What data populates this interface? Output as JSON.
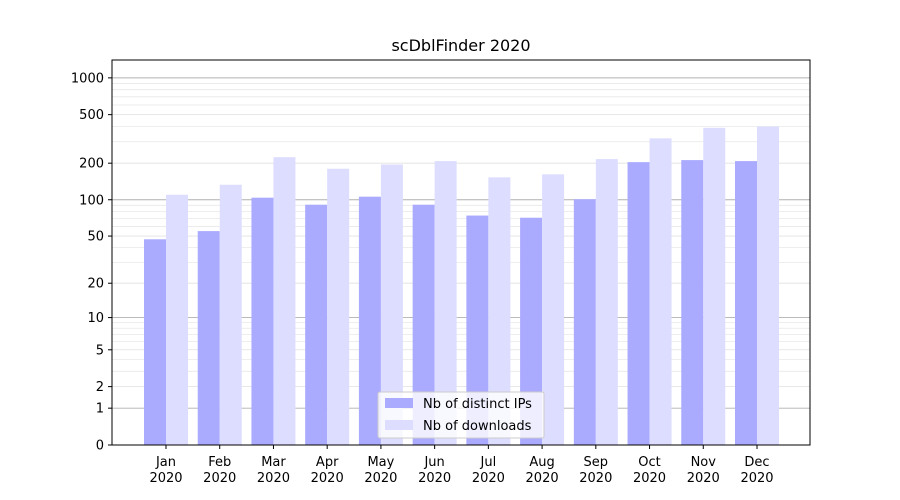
{
  "chart_data": {
    "type": "bar",
    "title": "scDblFinder 2020",
    "xlabel": "",
    "ylabel": "",
    "yscale": "log(1+y)",
    "ylim": [
      0,
      1400
    ],
    "yticks": [
      0,
      1,
      2,
      5,
      10,
      20,
      50,
      100,
      200,
      500,
      1000
    ],
    "grid": true,
    "legend_position": "lower-center",
    "categories": [
      [
        "Jan",
        "2020"
      ],
      [
        "Feb",
        "2020"
      ],
      [
        "Mar",
        "2020"
      ],
      [
        "Apr",
        "2020"
      ],
      [
        "May",
        "2020"
      ],
      [
        "Jun",
        "2020"
      ],
      [
        "Jul",
        "2020"
      ],
      [
        "Aug",
        "2020"
      ],
      [
        "Sep",
        "2020"
      ],
      [
        "Oct",
        "2020"
      ],
      [
        "Nov",
        "2020"
      ],
      [
        "Dec",
        "2020"
      ]
    ],
    "series": [
      {
        "name": "Nb of distinct IPs",
        "color": "#aaaaff",
        "values": [
          47,
          55,
          104,
          91,
          106,
          91,
          74,
          71,
          101,
          204,
          212,
          208
        ]
      },
      {
        "name": "Nb of downloads",
        "color": "#ddddff",
        "values": [
          110,
          133,
          224,
          180,
          195,
          208,
          153,
          162,
          216,
          320,
          390,
          400
        ]
      }
    ]
  }
}
